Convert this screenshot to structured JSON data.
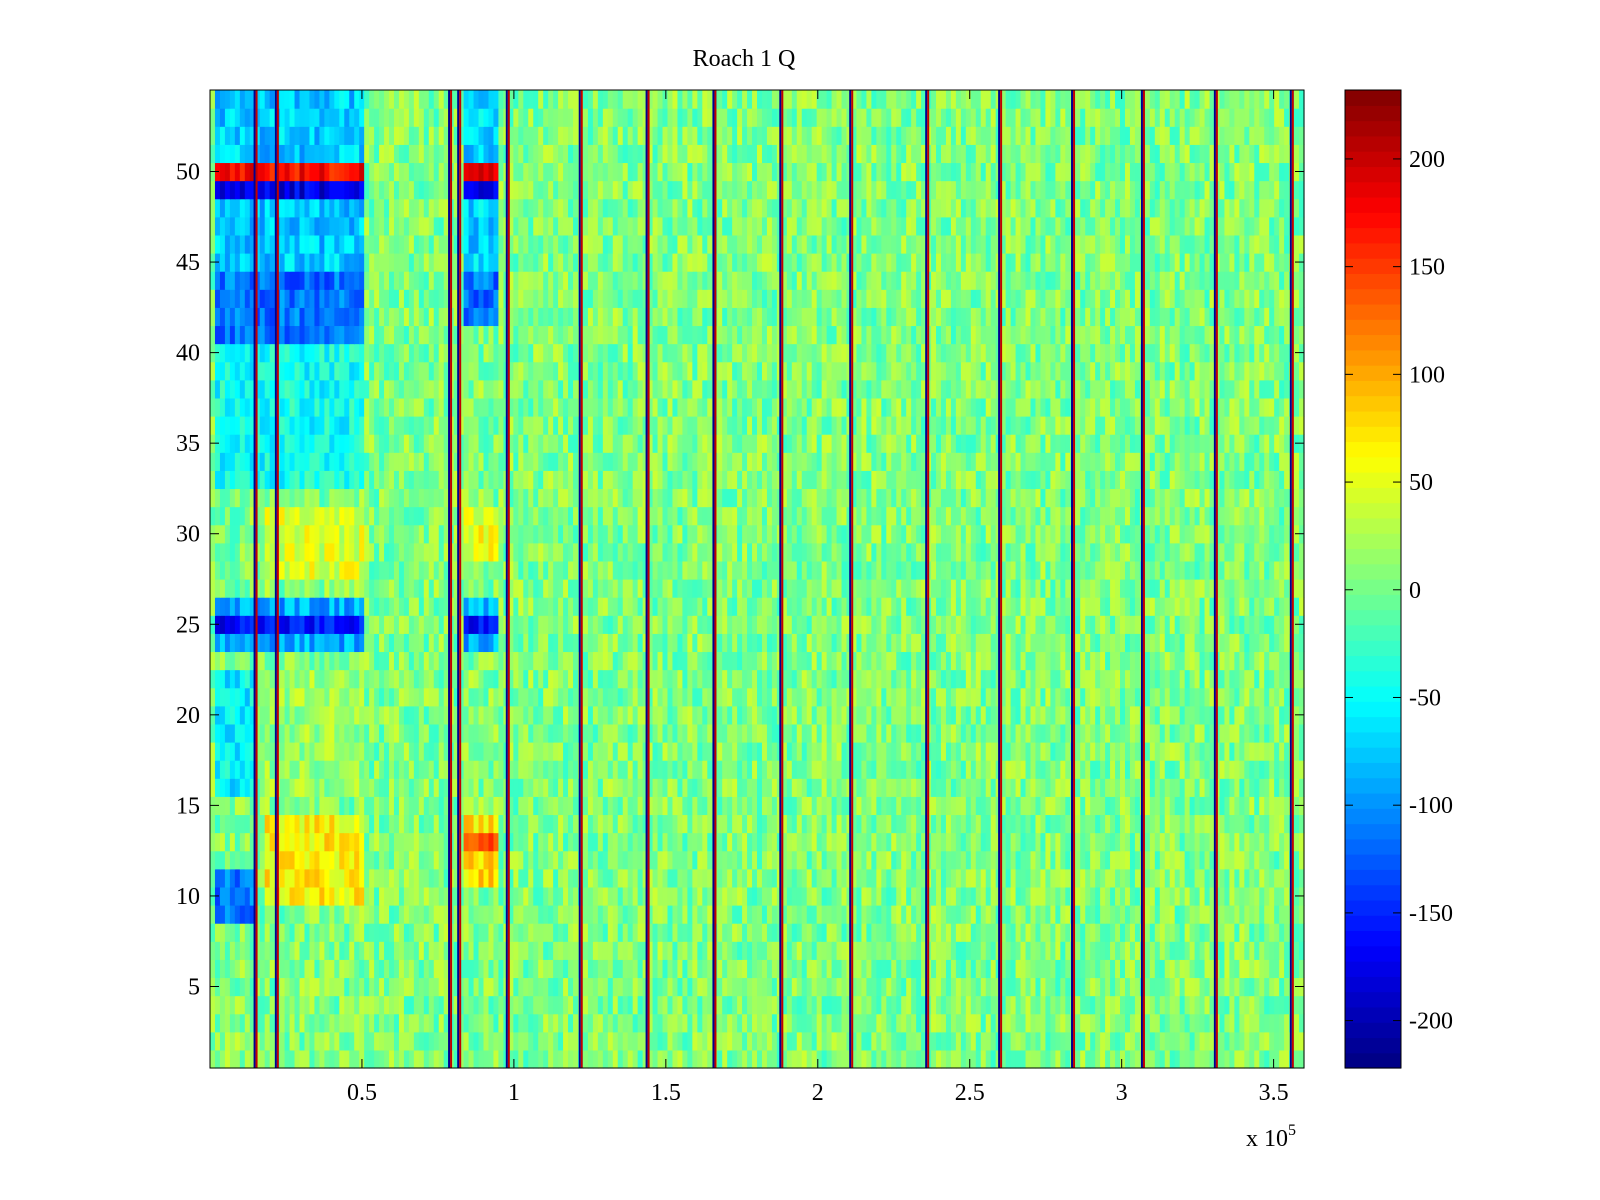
{
  "chart_data": {
    "type": "heatmap",
    "title": "Roach 1 Q",
    "xlabel": "",
    "ylabel": "",
    "x_multiplier_label": "x 10",
    "x_multiplier_exponent": "5",
    "xlim": [
      0,
      360000
    ],
    "ylim": [
      0.5,
      54.5
    ],
    "x_ticks": [
      {
        "value": 50000,
        "label": "0.5"
      },
      {
        "value": 100000,
        "label": "1"
      },
      {
        "value": 150000,
        "label": "1.5"
      },
      {
        "value": 200000,
        "label": "2"
      },
      {
        "value": 250000,
        "label": "2.5"
      },
      {
        "value": 300000,
        "label": "3"
      },
      {
        "value": 350000,
        "label": "3.5"
      }
    ],
    "y_ticks": [
      {
        "value": 5,
        "label": "5"
      },
      {
        "value": 10,
        "label": "10"
      },
      {
        "value": 15,
        "label": "15"
      },
      {
        "value": 20,
        "label": "20"
      },
      {
        "value": 25,
        "label": "25"
      },
      {
        "value": 30,
        "label": "30"
      },
      {
        "value": 35,
        "label": "35"
      },
      {
        "value": 40,
        "label": "40"
      },
      {
        "value": 45,
        "label": "45"
      },
      {
        "value": 50,
        "label": "50"
      }
    ],
    "colorbar": {
      "colormap": "jet",
      "clim": [
        -222,
        232
      ],
      "ticks": [
        {
          "value": 200,
          "label": "200"
        },
        {
          "value": 150,
          "label": "150"
        },
        {
          "value": 100,
          "label": "100"
        },
        {
          "value": 50,
          "label": "50"
        },
        {
          "value": 0,
          "label": "0"
        },
        {
          "value": -50,
          "label": "-50"
        },
        {
          "value": -100,
          "label": "-100"
        },
        {
          "value": -150,
          "label": "-150"
        },
        {
          "value": -200,
          "label": "-200"
        }
      ]
    },
    "rows": 54,
    "background_level": 5,
    "noise_amplitude": 35,
    "vertical_lines_x": [
      15000,
      22000,
      79000,
      82000,
      98000,
      122000,
      144000,
      166000,
      188000,
      211000,
      236000,
      260000,
      284000,
      307000,
      331000,
      356000
    ],
    "regions": [
      {
        "x_range": [
          2000,
          50000
        ],
        "rows": [
          50
        ],
        "value": 175
      },
      {
        "x_range": [
          84000,
          95000
        ],
        "rows": [
          50
        ],
        "value": 175
      },
      {
        "x_range": [
          2000,
          50000
        ],
        "rows": [
          49
        ],
        "value": -175
      },
      {
        "x_range": [
          84000,
          95000
        ],
        "rows": [
          49
        ],
        "value": -175
      },
      {
        "x_range": [
          2000,
          50000
        ],
        "rows": [
          25
        ],
        "value": -160
      },
      {
        "x_range": [
          84000,
          95000
        ],
        "rows": [
          25
        ],
        "value": -160
      },
      {
        "x_range": [
          2000,
          50000
        ],
        "rows": [
          24,
          26
        ],
        "value": -90
      },
      {
        "x_range": [
          84000,
          95000
        ],
        "rows": [
          24,
          26
        ],
        "value": -90
      },
      {
        "x_range": [
          2000,
          50000
        ],
        "rows": [
          41,
          42,
          43,
          44
        ],
        "value": -115
      },
      {
        "x_range": [
          84000,
          95000
        ],
        "rows": [
          42,
          43,
          44
        ],
        "value": -115
      },
      {
        "x_range": [
          2000,
          50000
        ],
        "rows": [
          45,
          46,
          47,
          48,
          51,
          52,
          53,
          54
        ],
        "value": -75
      },
      {
        "x_range": [
          84000,
          95000
        ],
        "rows": [
          45,
          46,
          47,
          48,
          51,
          52,
          53,
          54
        ],
        "value": -70
      },
      {
        "x_range": [
          2000,
          50000
        ],
        "rows": [
          33,
          34,
          35,
          36,
          37,
          38,
          39,
          40
        ],
        "value": -45
      },
      {
        "x_range": [
          18000,
          50000
        ],
        "rows": [
          10,
          11,
          12,
          13,
          14
        ],
        "value": 65
      },
      {
        "x_range": [
          84000,
          95000
        ],
        "rows": [
          11,
          12,
          13,
          14
        ],
        "value": 75
      },
      {
        "x_range": [
          84000,
          95000
        ],
        "rows": [
          13
        ],
        "value": 130
      },
      {
        "x_range": [
          2000,
          15000
        ],
        "rows": [
          9,
          10,
          11
        ],
        "value": -110
      },
      {
        "x_range": [
          2000,
          15000
        ],
        "rows": [
          16,
          17,
          18,
          19,
          20,
          21,
          22
        ],
        "value": -55
      },
      {
        "x_range": [
          18000,
          50000
        ],
        "rows": [
          16,
          17,
          18,
          19,
          20,
          21,
          22
        ],
        "value": 15
      },
      {
        "x_range": [
          18000,
          50000
        ],
        "rows": [
          28,
          29,
          30,
          31
        ],
        "value": 45
      },
      {
        "x_range": [
          84000,
          95000
        ],
        "rows": [
          29,
          30,
          31
        ],
        "value": 55
      }
    ]
  }
}
